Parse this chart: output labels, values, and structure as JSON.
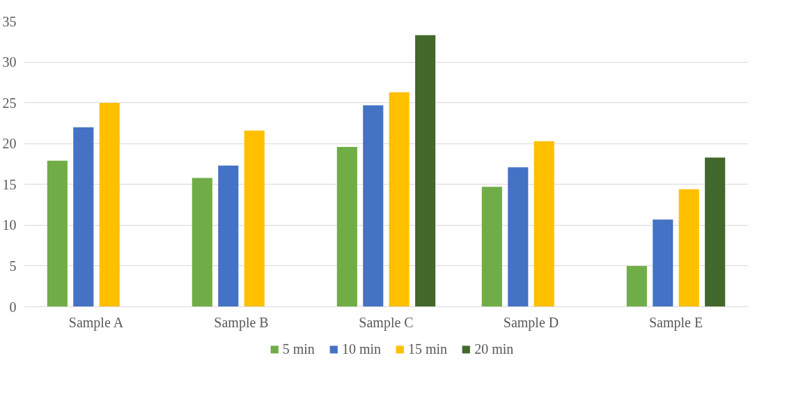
{
  "chart_data": {
    "type": "bar",
    "categories": [
      "Sample A",
      "Sample B",
      "Sample C",
      "Sample D",
      "Sample E"
    ],
    "series": [
      {
        "name": "5 min",
        "color": "#70ad47",
        "values": [
          17.9,
          15.8,
          19.6,
          14.7,
          5.0
        ]
      },
      {
        "name": "10 min",
        "color": "#4472c4",
        "values": [
          22.0,
          17.3,
          24.7,
          17.1,
          10.7
        ]
      },
      {
        "name": "15 min",
        "color": "#ffc000",
        "values": [
          25.0,
          21.6,
          26.3,
          20.3,
          14.4
        ]
      },
      {
        "name": "20 min",
        "color": "#43682b",
        "values": [
          null,
          null,
          33.3,
          null,
          18.3
        ]
      }
    ],
    "ylim": [
      0,
      35
    ],
    "yticks": [
      0,
      5,
      10,
      15,
      20,
      25,
      30,
      35
    ],
    "grid": "y",
    "legend": "bottom"
  }
}
